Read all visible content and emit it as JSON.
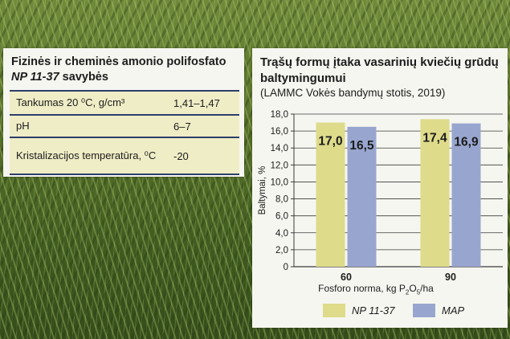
{
  "properties": {
    "title_line1": "Fizinės ir cheminės amonio polifosfato",
    "title_product": "NP 11-37",
    "title_rest": " savybės",
    "rows": [
      {
        "label": "Tankumas  20 ⁰C, g/cm³",
        "value": "1,41–1,47"
      },
      {
        "label": "pH",
        "value": "6–7"
      },
      {
        "label": "Kristalizacijos temperatūra, ⁰C",
        "value": "-20"
      }
    ]
  },
  "chart_data": {
    "type": "bar",
    "title": "Trąšų formų įtaka vasarinių kviečių  grūdų baltymingumui",
    "subtitle": "(LAMMC Vokės bandymų stotis, 2019)",
    "xlabel": "Fosforo norma, kg P₂O₅/ha",
    "ylabel": "Baltymai, %",
    "categories": [
      "60",
      "90"
    ],
    "series": [
      {
        "name": "NP 11-37",
        "values": [
          17.0,
          17.4
        ],
        "labels": [
          "17,0",
          "17,4"
        ]
      },
      {
        "name": "MAP",
        "values": [
          16.5,
          16.9
        ],
        "labels": [
          "16,5",
          "16,9"
        ]
      }
    ],
    "ylim": [
      0,
      18
    ],
    "yticks": [
      0,
      2,
      4,
      6,
      8,
      10,
      12,
      14,
      16,
      18
    ],
    "ytick_labels": [
      "0",
      "2,0",
      "4,0",
      "6,0",
      "8,0",
      "10,0",
      "12,0",
      "14,0",
      "16,0",
      "18,0"
    ],
    "grid": true,
    "legend_position": "bottom",
    "colors": {
      "NP 11-37": "#dedb8b",
      "MAP": "#98a6cf",
      "grid": "#3a3a3a"
    }
  }
}
